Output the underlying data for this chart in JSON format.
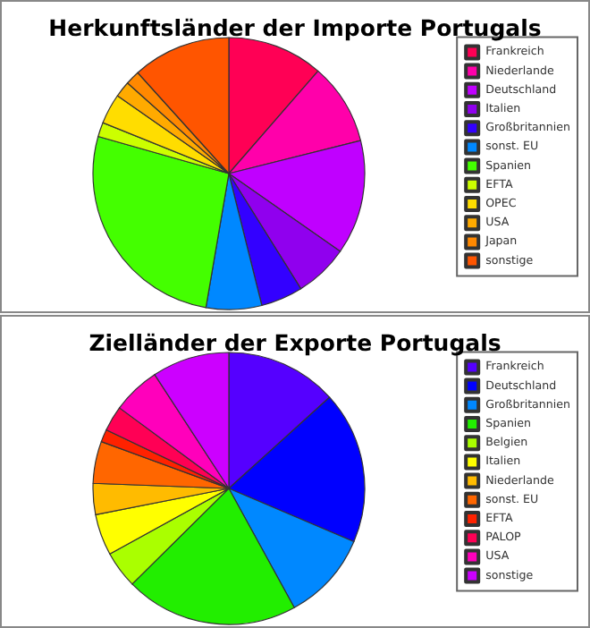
{
  "chart_data": [
    {
      "type": "pie",
      "title": "Herkunftsländer der Importe Portugals",
      "legend": "right",
      "categories": [
        "Frankreich",
        "Niederlande",
        "Deutschland",
        "Italien",
        "Großbritannien",
        "sonst. EU",
        "Spanien",
        "EFTA",
        "OPEC",
        "USA",
        "Japan",
        "sonstige"
      ],
      "values": [
        11.4,
        9.7,
        13.6,
        6.4,
        5.0,
        6.6,
        26.7,
        1.7,
        3.6,
        1.9,
        1.7,
        11.7
      ],
      "colors": [
        "#ff0055",
        "#ff00aa",
        "#c000ff",
        "#9000ee",
        "#3300ff",
        "#0088ff",
        "#44ff00",
        "#ccff00",
        "#ffdd00",
        "#ffaa00",
        "#ff8800",
        "#ff5500"
      ]
    },
    {
      "type": "pie",
      "title": "Zielländer der Exporte Portugals",
      "legend": "right",
      "categories": [
        "Frankreich",
        "Deutschland",
        "Großbritannien",
        "Spanien",
        "Belgien",
        "Italien",
        "Niederlande",
        "sonst. EU",
        "EFTA",
        "PALOP",
        "USA",
        "sonstige"
      ],
      "values": [
        13.3,
        18.1,
        10.6,
        20.6,
        4.4,
        4.9,
        3.7,
        5.0,
        1.5,
        3.0,
        5.7,
        9.2
      ],
      "colors": [
        "#5500ff",
        "#0000ff",
        "#0088ff",
        "#22ee00",
        "#aaff00",
        "#ffff00",
        "#ffbb00",
        "#ff6600",
        "#ff2200",
        "#ff0055",
        "#ff00bb",
        "#cc00ff"
      ]
    }
  ]
}
